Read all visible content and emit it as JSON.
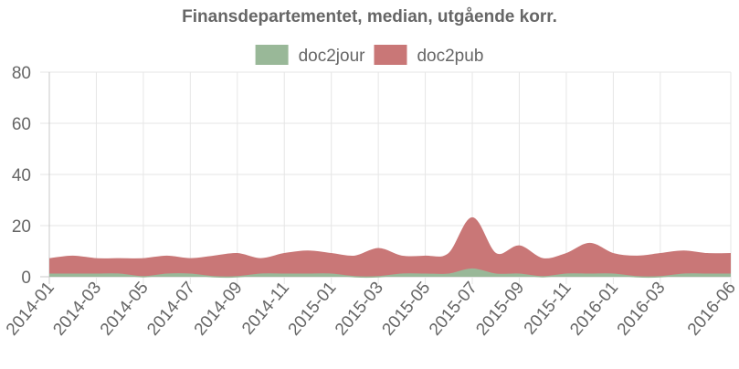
{
  "chart_data": {
    "type": "area",
    "stacked": true,
    "smooth": true,
    "title": "Finansdepartementet, median, utgående korr.",
    "xlabel": "",
    "ylabel": "",
    "ylim": [
      0,
      80
    ],
    "yticks": [
      0,
      20,
      40,
      60,
      80
    ],
    "grid": true,
    "legend_position": "top",
    "categories": [
      "2014-01",
      "2014-02",
      "2014-03",
      "2014-04",
      "2014-05",
      "2014-06",
      "2014-07",
      "2014-08",
      "2014-09",
      "2014-10",
      "2014-11",
      "2014-12",
      "2015-01",
      "2015-02",
      "2015-03",
      "2015-04",
      "2015-05",
      "2015-06",
      "2015-07",
      "2015-08",
      "2015-09",
      "2015-10",
      "2015-11",
      "2015-12",
      "2016-01",
      "2016-02",
      "2016-03",
      "2016-04",
      "2016-05",
      "2016-06"
    ],
    "tick_labels": [
      "2014-01",
      "2014-03",
      "2014-05",
      "2014-07",
      "2014-09",
      "2014-11",
      "2015-01",
      "2015-03",
      "2015-05",
      "2015-07",
      "2015-09",
      "2015-11",
      "2016-01",
      "2016-03",
      "2016-06"
    ],
    "series": [
      {
        "name": "doc2jour",
        "color": "#99b898",
        "values": [
          1,
          1,
          1,
          1,
          0,
          1,
          1,
          0,
          0,
          1,
          1,
          1,
          1,
          0,
          0,
          1,
          1,
          1,
          3,
          1,
          1,
          0,
          1,
          1,
          1,
          0,
          0,
          1,
          1,
          1
        ]
      },
      {
        "name": "doc2pub",
        "color": "#c97777",
        "values": [
          6,
          7,
          6,
          6,
          7,
          7,
          6,
          8,
          9,
          6,
          8,
          9,
          8,
          8,
          11,
          7,
          7,
          8,
          20,
          8,
          11,
          7,
          8,
          12,
          8,
          8,
          9,
          9,
          8,
          8
        ]
      }
    ]
  }
}
